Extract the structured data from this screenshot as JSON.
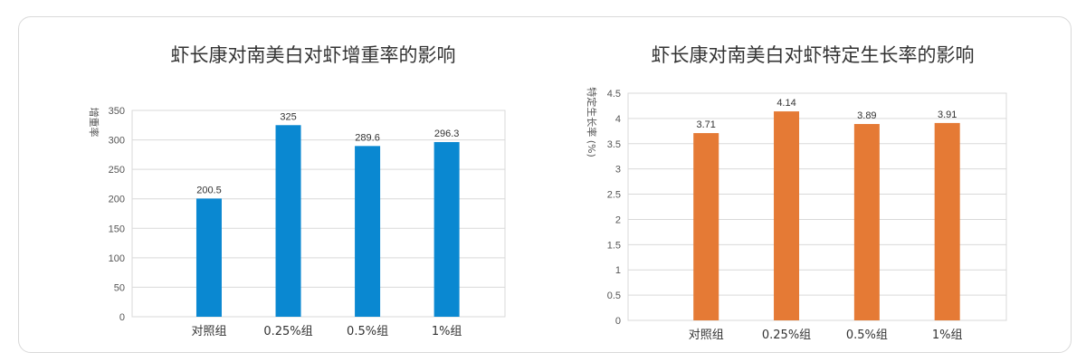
{
  "chart_data": [
    {
      "type": "bar",
      "title": "虾长康对南美白对虾增重率的影响",
      "ylabel": "增重率",
      "xlabel": "",
      "categories": [
        "对照组",
        "0.25%组",
        "0.5%组",
        "1%组"
      ],
      "values": [
        200.5,
        325,
        289.6,
        296.3
      ],
      "value_labels": [
        "200.5",
        "325",
        "289.6",
        "296.3"
      ],
      "ylim": [
        0,
        350
      ],
      "yticks": [
        0,
        50,
        100,
        150,
        200,
        250,
        300,
        350
      ],
      "ytick_labels": [
        "0",
        "50",
        "100",
        "150",
        "200",
        "250",
        "300",
        "350"
      ],
      "grid": true,
      "bar_color": "#0a88d1"
    },
    {
      "type": "bar",
      "title": "虾长康对南美白对虾特定生长率的影响",
      "ylabel": "特定生长率 (%)",
      "xlabel": "",
      "categories": [
        "对照组",
        "0.25%组",
        "0.5%组",
        "1%组"
      ],
      "values": [
        3.71,
        4.14,
        3.89,
        3.91
      ],
      "value_labels": [
        "3.71",
        "4.14",
        "3.89",
        "3.91"
      ],
      "ylim": [
        0,
        4.5
      ],
      "yticks": [
        0,
        0.5,
        1,
        1.5,
        2,
        2.5,
        3,
        3.5,
        4,
        4.5
      ],
      "ytick_labels": [
        "0",
        "0.5",
        "1",
        "1.5",
        "2",
        "2.5",
        "3",
        "3.5",
        "4",
        "4.5"
      ],
      "grid": true,
      "bar_color": "#e57a35"
    }
  ]
}
